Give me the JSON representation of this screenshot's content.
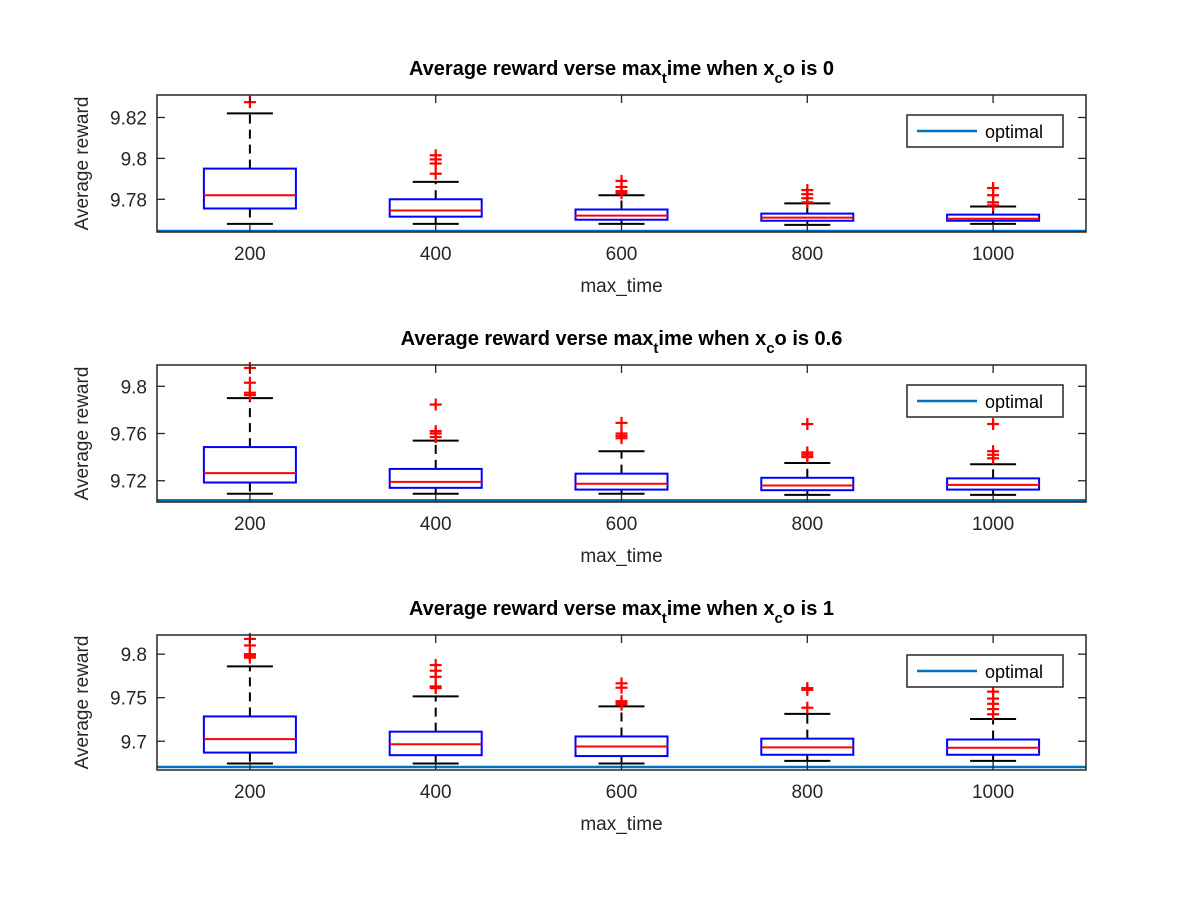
{
  "chart_data": [
    {
      "type": "box",
      "title": {
        "main": "Average reward verse max",
        "sub1": "t",
        "mid": "ime when x",
        "sub2": "c",
        "tail": "o is 0"
      },
      "xlabel": "max_time",
      "ylabel": "Average reward",
      "categories": [
        "200",
        "400",
        "600",
        "800",
        "1000"
      ],
      "ylim": [
        9.764,
        9.831
      ],
      "yticks": [
        9.78,
        9.8,
        9.82
      ],
      "ytick_labels": [
        "9.78",
        "9.8",
        "9.82"
      ],
      "optimal": 9.764,
      "legend": {
        "label": "optimal",
        "position": "top-right"
      },
      "colors": {
        "box": "#0000ff",
        "median": "#ff0000",
        "whisker": "#000000",
        "outlier": "#ff0000",
        "optimal": "#0072bd"
      },
      "boxes": [
        {
          "whisker_low": 9.768,
          "q1": 9.7755,
          "median": 9.782,
          "q3": 9.795,
          "whisker_high": 9.822,
          "outliers": [
            9.8275
          ]
        },
        {
          "whisker_low": 9.768,
          "q1": 9.7715,
          "median": 9.7745,
          "q3": 9.78,
          "whisker_high": 9.7885,
          "outliers": [
            9.7925,
            9.7975,
            9.7995,
            9.8015
          ]
        },
        {
          "whisker_low": 9.768,
          "q1": 9.77,
          "median": 9.772,
          "q3": 9.775,
          "whisker_high": 9.782,
          "outliers": [
            9.783,
            9.784,
            9.786,
            9.789
          ]
        },
        {
          "whisker_low": 9.7675,
          "q1": 9.7695,
          "median": 9.771,
          "q3": 9.773,
          "whisker_high": 9.778,
          "outliers": [
            9.7785,
            9.7805,
            9.7825,
            9.7845
          ]
        },
        {
          "whisker_low": 9.768,
          "q1": 9.7695,
          "median": 9.7705,
          "q3": 9.7725,
          "whisker_high": 9.7765,
          "outliers": [
            9.777,
            9.7785,
            9.782,
            9.7855
          ]
        }
      ]
    },
    {
      "type": "box",
      "title": {
        "main": "Average reward verse max",
        "sub1": "t",
        "mid": "ime when x",
        "sub2": "c",
        "tail": "o is 0.6"
      },
      "xlabel": "max_time",
      "ylabel": "Average reward",
      "categories": [
        "200",
        "400",
        "600",
        "800",
        "1000"
      ],
      "ylim": [
        9.702,
        9.818
      ],
      "yticks": [
        9.72,
        9.76,
        9.8
      ],
      "ytick_labels": [
        "9.72",
        "9.76",
        "9.8"
      ],
      "optimal": 9.7035,
      "legend": {
        "label": "optimal",
        "position": "top-right"
      },
      "colors": {
        "box": "#0000ff",
        "median": "#ff0000",
        "whisker": "#000000",
        "outlier": "#ff0000",
        "optimal": "#0072bd"
      },
      "boxes": [
        {
          "whisker_low": 9.709,
          "q1": 9.7185,
          "median": 9.7265,
          "q3": 9.7485,
          "whisker_high": 9.79,
          "outliers": [
            9.7925,
            9.7945,
            9.803,
            9.8155
          ]
        },
        {
          "whisker_low": 9.709,
          "q1": 9.714,
          "median": 9.719,
          "q3": 9.73,
          "whisker_high": 9.754,
          "outliers": [
            9.757,
            9.76,
            9.762,
            9.7845
          ]
        },
        {
          "whisker_low": 9.709,
          "q1": 9.7125,
          "median": 9.7175,
          "q3": 9.726,
          "whisker_high": 9.745,
          "outliers": [
            9.756,
            9.758,
            9.76,
            9.769
          ]
        },
        {
          "whisker_low": 9.708,
          "q1": 9.712,
          "median": 9.716,
          "q3": 9.7225,
          "whisker_high": 9.735,
          "outliers": [
            9.74,
            9.742,
            9.744,
            9.768
          ]
        },
        {
          "whisker_low": 9.708,
          "q1": 9.7125,
          "median": 9.7165,
          "q3": 9.722,
          "whisker_high": 9.734,
          "outliers": [
            9.739,
            9.742,
            9.745,
            9.768
          ]
        }
      ]
    },
    {
      "type": "box",
      "title": {
        "main": "Average reward verse max",
        "sub1": "t",
        "mid": "ime when x",
        "sub2": "c",
        "tail": "o is 1"
      },
      "xlabel": "max_time",
      "ylabel": "Average reward",
      "categories": [
        "200",
        "400",
        "600",
        "800",
        "1000"
      ],
      "ylim": [
        9.667,
        9.822
      ],
      "yticks": [
        9.7,
        9.75,
        9.8
      ],
      "ytick_labels": [
        "9.7",
        "9.75",
        "9.8"
      ],
      "optimal": 9.6705,
      "legend": {
        "label": "optimal",
        "position": "top-right"
      },
      "colors": {
        "box": "#0000ff",
        "median": "#ff0000",
        "whisker": "#000000",
        "outlier": "#ff0000",
        "optimal": "#0072bd"
      },
      "boxes": [
        {
          "whisker_low": 9.6745,
          "q1": 9.687,
          "median": 9.7025,
          "q3": 9.7285,
          "whisker_high": 9.786,
          "outliers": [
            9.796,
            9.7985,
            9.8,
            9.81,
            9.8175
          ]
        },
        {
          "whisker_low": 9.6745,
          "q1": 9.684,
          "median": 9.6965,
          "q3": 9.711,
          "whisker_high": 9.7515,
          "outliers": [
            9.761,
            9.763,
            9.774,
            9.781,
            9.7875
          ]
        },
        {
          "whisker_low": 9.6745,
          "q1": 9.683,
          "median": 9.694,
          "q3": 9.7055,
          "whisker_high": 9.74,
          "outliers": [
            9.742,
            9.744,
            9.746,
            9.7615,
            9.7665
          ]
        },
        {
          "whisker_low": 9.6775,
          "q1": 9.6845,
          "median": 9.693,
          "q3": 9.703,
          "whisker_high": 9.7315,
          "outliers": [
            9.7385,
            9.759,
            9.761
          ]
        },
        {
          "whisker_low": 9.6775,
          "q1": 9.6845,
          "median": 9.6925,
          "q3": 9.702,
          "whisker_high": 9.7255,
          "outliers": [
            9.731,
            9.737,
            9.743,
            9.749,
            9.757
          ]
        }
      ]
    }
  ]
}
